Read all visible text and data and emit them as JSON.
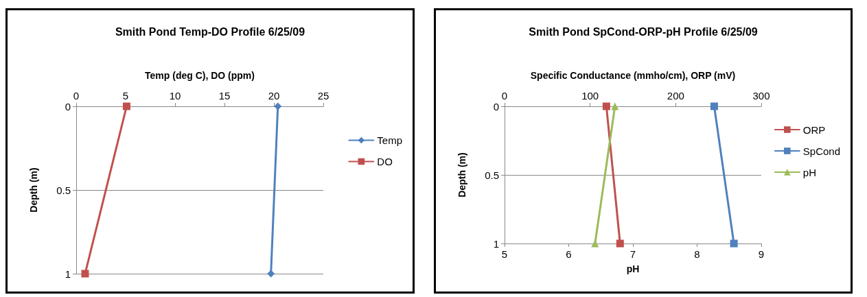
{
  "chart_data": [
    {
      "type": "line",
      "title": "Smith Pond Temp-DO Profile 6/25/09",
      "xlabel": "Temp (deg C), DO (ppm)",
      "ylabel": "Depth (m)",
      "xlim": [
        0,
        25
      ],
      "xticks": [
        0,
        5,
        10,
        15,
        20,
        25
      ],
      "ylim": [
        1,
        0
      ],
      "yticks": [
        0,
        0.5,
        1
      ],
      "grid": "y",
      "legend": "right",
      "series": [
        {
          "name": "Temp",
          "color": "#4f81bd",
          "marker": "diamond",
          "x": [
            20.4,
            19.7
          ],
          "values": [
            0,
            1
          ]
        },
        {
          "name": "DO",
          "color": "#c0504d",
          "marker": "square",
          "x": [
            5.1,
            0.9
          ],
          "values": [
            0,
            1
          ]
        }
      ]
    },
    {
      "type": "line",
      "title": "Smith Pond SpCond-ORP-pH Profile 6/25/09",
      "x2label": "Specific Conductance (mmho/cm), ORP (mV)",
      "xlabel": "pH",
      "ylabel": "Depth (m)",
      "x2lim": [
        0,
        300
      ],
      "x2ticks": [
        0,
        100,
        200,
        300
      ],
      "xlim": [
        5,
        9
      ],
      "xticks": [
        5,
        6,
        7,
        8,
        9
      ],
      "ylim": [
        1,
        0
      ],
      "yticks": [
        0,
        0.5,
        1
      ],
      "grid": "y",
      "legend": "right",
      "series": [
        {
          "name": "ORP",
          "color": "#c0504d",
          "marker": "square",
          "axis": "x2",
          "x": [
            119,
            135
          ],
          "values": [
            0,
            1
          ]
        },
        {
          "name": "SpCond",
          "color": "#4f81bd",
          "marker": "square",
          "axis": "x2",
          "x": [
            245,
            268
          ],
          "values": [
            0,
            1
          ]
        },
        {
          "name": "pH",
          "color": "#9bbb59",
          "marker": "triangle",
          "x": [
            6.72,
            6.41
          ],
          "values": [
            0,
            1
          ]
        }
      ]
    }
  ]
}
